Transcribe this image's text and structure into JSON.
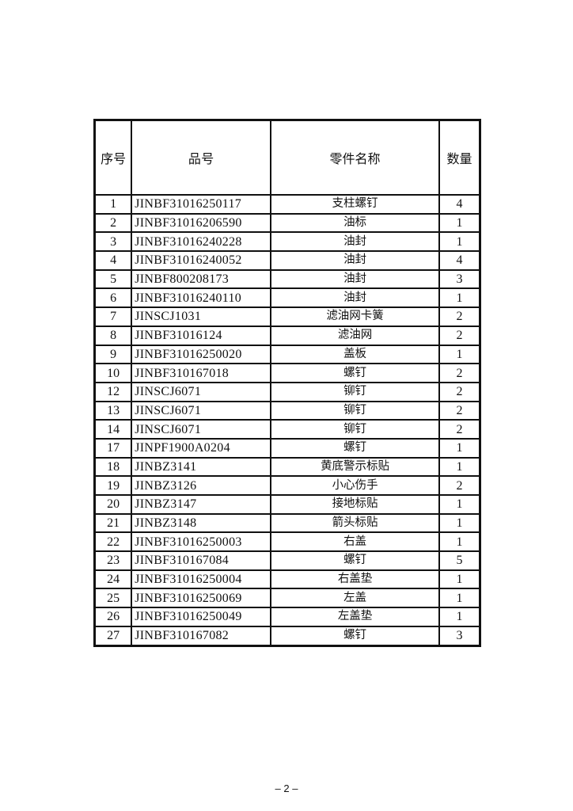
{
  "table": {
    "headers": [
      "序号",
      "品号",
      "零件名称",
      "数量"
    ],
    "rows": [
      [
        "1",
        "JINBF31016250117",
        "支柱螺钉",
        "4"
      ],
      [
        "2",
        "JINBF31016206590",
        "油标",
        "1"
      ],
      [
        "3",
        "JINBF31016240228",
        "油封",
        "1"
      ],
      [
        "4",
        "JINBF31016240052",
        "油封",
        "4"
      ],
      [
        "5",
        "JINBF800208173",
        "油封",
        "3"
      ],
      [
        "6",
        "JINBF31016240110",
        "油封",
        "1"
      ],
      [
        "7",
        "JINSCJ1031",
        "滤油网卡簧",
        "2"
      ],
      [
        "8",
        "JINBF31016124",
        "滤油网",
        "2"
      ],
      [
        "9",
        "JINBF31016250020",
        "盖板",
        "1"
      ],
      [
        "10",
        "JINBF310167018",
        "螺钉",
        "2"
      ],
      [
        "12",
        "JINSCJ6071",
        "铆钉",
        "2"
      ],
      [
        "13",
        "JINSCJ6071",
        "铆钉",
        "2"
      ],
      [
        "14",
        "JINSCJ6071",
        "铆钉",
        "2"
      ],
      [
        "17",
        "JINPF1900A0204",
        "螺钉",
        "1"
      ],
      [
        "18",
        "JINBZ3141",
        "黄底警示标贴",
        "1"
      ],
      [
        "19",
        "JINBZ3126",
        "小心伤手",
        "2"
      ],
      [
        "20",
        "JINBZ3147",
        "接地标贴",
        "1"
      ],
      [
        "21",
        "JINBZ3148",
        "箭头标贴",
        "1"
      ],
      [
        "22",
        "JINBF31016250003",
        "右盖",
        "1"
      ],
      [
        "23",
        "JINBF310167084",
        "螺钉",
        "5"
      ],
      [
        "24",
        "JINBF31016250004",
        "右盖垫",
        "1"
      ],
      [
        "25",
        "JINBF31016250069",
        "左盖",
        "1"
      ],
      [
        "26",
        "JINBF31016250049",
        "左盖垫",
        "1"
      ],
      [
        "27",
        "JINBF310167082",
        "螺钉",
        "3"
      ]
    ]
  },
  "footer": {
    "page_number": "– 2 –"
  }
}
